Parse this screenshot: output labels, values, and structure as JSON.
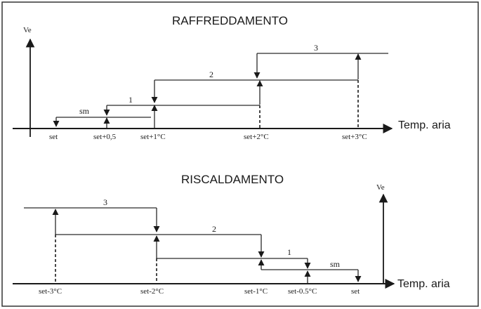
{
  "panels": {
    "cooling": {
      "title": "RAFFREDDAMENTO",
      "y_axis_label": "Ve",
      "x_axis_label": "Temp. aria",
      "tick_labels": [
        "set",
        "set+0,5",
        "set+1°C",
        "set+2°C",
        "set+3°C"
      ],
      "stage_labels": [
        "sm",
        "1",
        "2",
        "3"
      ]
    },
    "heating": {
      "title": "RISCALDAMENTO",
      "y_axis_label": "Ve",
      "x_axis_label": "Temp. aria",
      "tick_labels": [
        "set-3°C",
        "set-2°C",
        "set-1°C",
        "set-0.5°C",
        "set"
      ],
      "stage_labels": [
        "3",
        "2",
        "1",
        "sm"
      ]
    }
  }
}
